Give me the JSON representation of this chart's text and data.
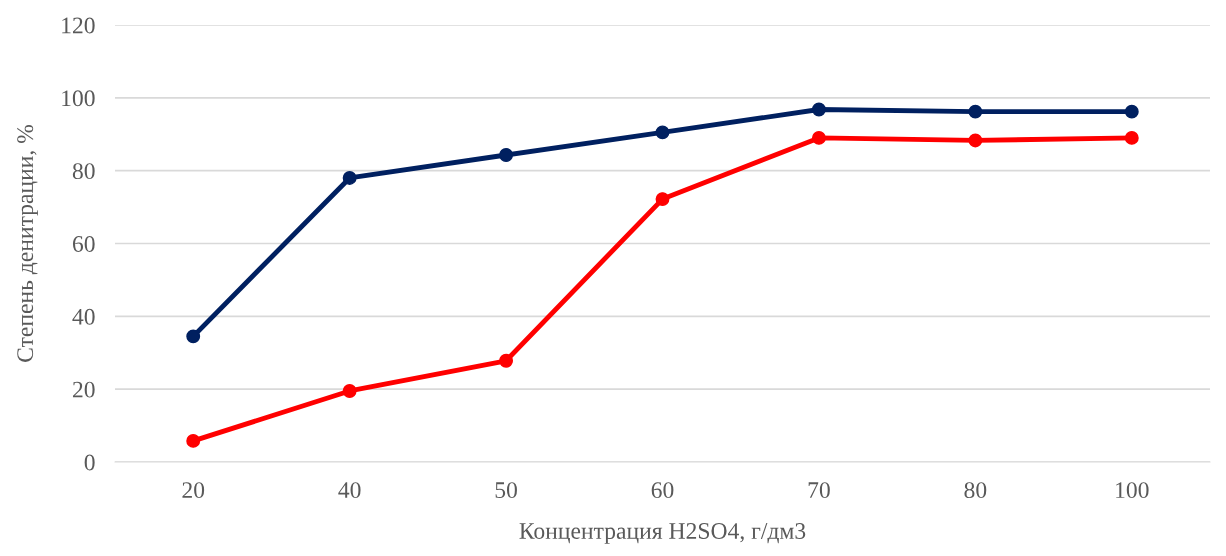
{
  "chart_data": {
    "type": "line",
    "xlabel": "Концентрация H2SO4, г/дм3",
    "ylabel": "Степень денитрации, %",
    "categories": [
      "20",
      "40",
      "50",
      "60",
      "70",
      "80",
      "100"
    ],
    "series": [
      {
        "color": "#002060",
        "values": [
          34.5,
          78,
          84.3,
          90.5,
          96.8,
          96.2,
          96.2
        ]
      },
      {
        "color": "#ff0000",
        "values": [
          5.8,
          19.5,
          27.8,
          72.2,
          89,
          88.3,
          89
        ]
      }
    ],
    "ylim": [
      0,
      120
    ],
    "yticks": [
      0,
      20,
      40,
      60,
      80,
      100,
      120
    ],
    "grid": "y",
    "marker": "circle",
    "line_style": "solid"
  }
}
